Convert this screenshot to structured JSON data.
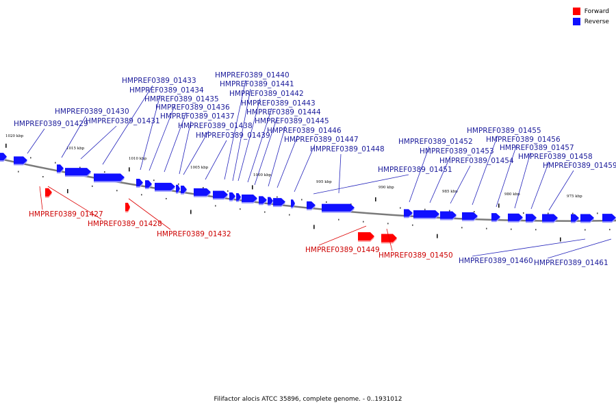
{
  "legend": {
    "forward_label": "Forward",
    "reverse_label": "Reverse",
    "forward_color": "#ff0000",
    "reverse_color": "#1010ff"
  },
  "footer": "Filifactor alocis ATCC 35896, complete genome. - 0..1931012",
  "ticks": [
    "1020 kbp",
    "1015 kbp",
    "1010 kbp",
    "1005 kbp",
    "1000 kbp",
    "995 kbp",
    "990 kbp",
    "985 kbp",
    "980 kbp",
    "975 kbp"
  ],
  "genes": [
    {
      "id": "HMPREF0389_01427",
      "strand": "forward"
    },
    {
      "id": "HMPREF0389_01428",
      "strand": "forward"
    },
    {
      "id": "HMPREF0389_01429",
      "strand": "reverse"
    },
    {
      "id": "HMPREF0389_01430",
      "strand": "reverse"
    },
    {
      "id": "HMPREF0389_01431",
      "strand": "reverse"
    },
    {
      "id": "HMPREF0389_01432",
      "strand": "forward"
    },
    {
      "id": "HMPREF0389_01433",
      "strand": "reverse"
    },
    {
      "id": "HMPREF0389_01434",
      "strand": "reverse"
    },
    {
      "id": "HMPREF0389_01435",
      "strand": "reverse"
    },
    {
      "id": "HMPREF0389_01436",
      "strand": "reverse"
    },
    {
      "id": "HMPREF0389_01437",
      "strand": "reverse"
    },
    {
      "id": "HMPREF0389_01438",
      "strand": "reverse"
    },
    {
      "id": "HMPREF0389_01439",
      "strand": "reverse"
    },
    {
      "id": "HMPREF0389_01440",
      "strand": "reverse"
    },
    {
      "id": "HMPREF0389_01441",
      "strand": "reverse"
    },
    {
      "id": "HMPREF0389_01442",
      "strand": "reverse"
    },
    {
      "id": "HMPREF0389_01443",
      "strand": "reverse"
    },
    {
      "id": "HMPREF0389_01444",
      "strand": "reverse"
    },
    {
      "id": "HMPREF0389_01445",
      "strand": "reverse"
    },
    {
      "id": "HMPREF0389_01446",
      "strand": "reverse"
    },
    {
      "id": "HMPREF0389_01447",
      "strand": "reverse"
    },
    {
      "id": "HMPREF0389_01448",
      "strand": "reverse"
    },
    {
      "id": "HMPREF0389_01449",
      "strand": "forward"
    },
    {
      "id": "HMPREF0389_01450",
      "strand": "forward"
    },
    {
      "id": "HMPREF0389_01451",
      "strand": "reverse"
    },
    {
      "id": "HMPREF0389_01452",
      "strand": "reverse"
    },
    {
      "id": "HMPREF0389_01453",
      "strand": "reverse"
    },
    {
      "id": "HMPREF0389_01454",
      "strand": "reverse"
    },
    {
      "id": "HMPREF0389_01455",
      "strand": "reverse"
    },
    {
      "id": "HMPREF0389_01456",
      "strand": "reverse"
    },
    {
      "id": "HMPREF0389_01457",
      "strand": "reverse"
    },
    {
      "id": "HMPREF0389_01458",
      "strand": "reverse"
    },
    {
      "id": "HMPREF0389_01459",
      "strand": "reverse"
    },
    {
      "id": "HMPREF0389_01460",
      "strand": "reverse"
    },
    {
      "id": "HMPREF0389_01461",
      "strand": "reverse"
    }
  ]
}
